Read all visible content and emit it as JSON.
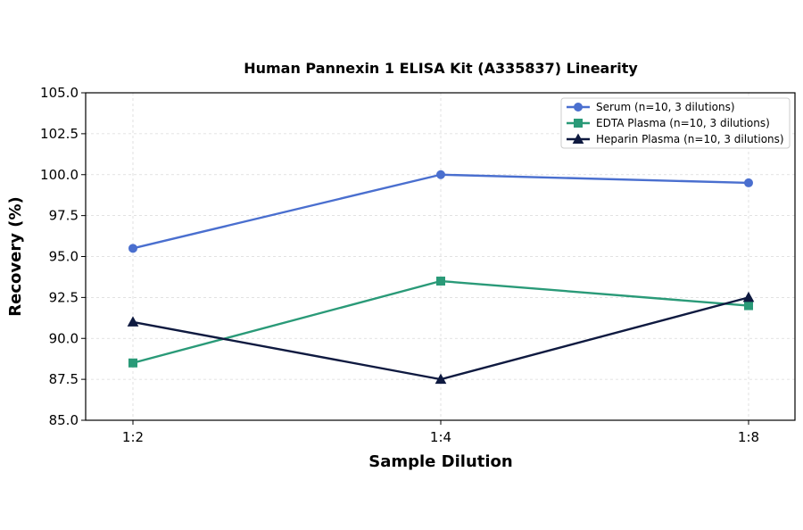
{
  "chart_data": {
    "type": "line",
    "title": "Human Pannexin 1 ELISA Kit (A335837) Linearity",
    "xlabel": "Sample Dilution",
    "ylabel": "Recovery (%)",
    "categories": [
      "1:2",
      "1:4",
      "1:8"
    ],
    "ylim": [
      85.0,
      105.0
    ],
    "yticks": [
      "85.0",
      "87.5",
      "90.0",
      "92.5",
      "95.0",
      "97.5",
      "100.0",
      "102.5",
      "105.0"
    ],
    "grid": true,
    "legend_position": "top-right",
    "series": [
      {
        "name": "Serum (n=10, 3 dilutions)",
        "values": [
          95.5,
          100.0,
          99.5
        ],
        "color": "#4a6fcf",
        "marker": "circle"
      },
      {
        "name": "EDTA Plasma (n=10, 3 dilutions)",
        "values": [
          88.5,
          93.5,
          92.0
        ],
        "color": "#2a9a78",
        "marker": "square"
      },
      {
        "name": "Heparin Plasma (n=10, 3 dilutions)",
        "values": [
          91.0,
          87.5,
          92.5
        ],
        "color": "#0f1a40",
        "marker": "triangle"
      }
    ]
  }
}
